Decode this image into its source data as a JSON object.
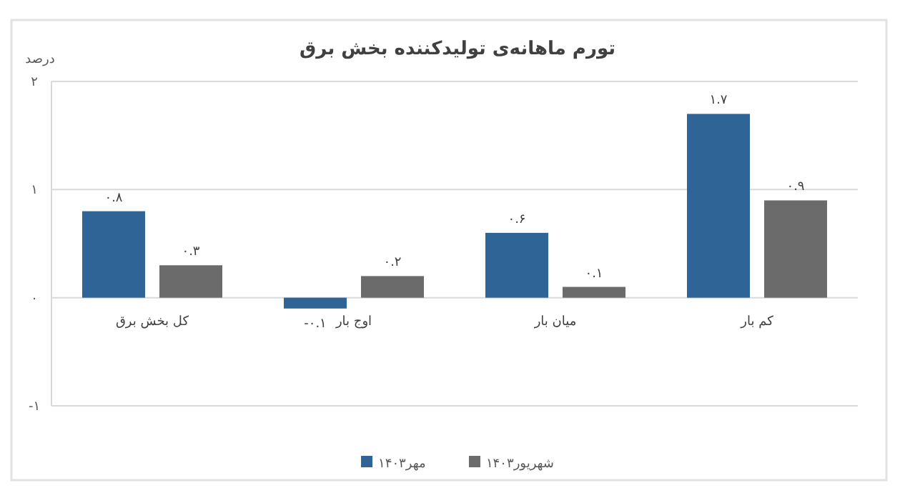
{
  "chart_data": {
    "type": "bar",
    "title": "تورم ماهانه‌ی تولیدکننده بخش برق",
    "ylabel": "درصد",
    "categories": [
      "کل بخش برق",
      "اوج بار",
      "میان بار",
      "کم بار"
    ],
    "series": [
      {
        "name": "مهر۱۴۰۳",
        "color": "#2e6496",
        "values": [
          0.8,
          -0.1,
          0.6,
          1.7
        ],
        "value_labels": [
          "۰.۸",
          "-۰.۱",
          "۰.۶",
          "۱.۷"
        ]
      },
      {
        "name": "شهریور۱۴۰۳",
        "color": "#6b6b6b",
        "values": [
          0.3,
          0.2,
          0.1,
          0.9
        ],
        "value_labels": [
          "۰.۳",
          "۰.۲",
          "۰.۱",
          "۰.۹"
        ]
      }
    ],
    "ylim": [
      -1,
      2
    ],
    "yticks": [
      {
        "value": -1,
        "label": "-۱"
      },
      {
        "value": 0,
        "label": "۰"
      },
      {
        "value": 1,
        "label": "۱"
      },
      {
        "value": 2,
        "label": "۲"
      }
    ],
    "grid": "y",
    "legend": "bottom"
  }
}
